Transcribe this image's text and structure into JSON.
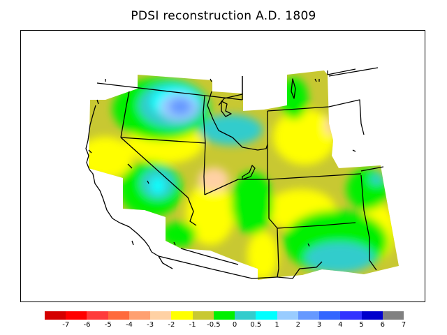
{
  "title": "PDSI reconstruction A.D. 1809",
  "colors": {
    "-7": "#d40000",
    "-6": "#ff0000",
    "-5": "#ff3b3b",
    "-4": "#ff6a3c",
    "-3": "#ffa071",
    "-2": "#ffd1a4",
    "-1": "#ffff00",
    "-0.5": "#c8c832",
    "0": "#00f000",
    "0.5": "#33cccc",
    "1": "#00ffff",
    "2": "#99ccff",
    "3": "#6699ff",
    "4": "#3366ff",
    "5": "#3333ff",
    "6": "#0000cc",
    "7": "#808080"
  },
  "colorbar": {
    "swatches": [
      "#d40000",
      "#ff0000",
      "#ff3b3b",
      "#ff6a3c",
      "#ffa071",
      "#ffd1a4",
      "#ffff00",
      "#c8c832",
      "#00f000",
      "#33cccc",
      "#00ffff",
      "#99ccff",
      "#6699ff",
      "#3366ff",
      "#3333ff",
      "#0000cc",
      "#808080"
    ],
    "labels": [
      "-7",
      "-6",
      "-5",
      "-4",
      "-3",
      "-2",
      "-1",
      "-0.5",
      "0",
      "0.5",
      "1",
      "2",
      "3",
      "4",
      "5",
      "6",
      "7"
    ]
  }
}
